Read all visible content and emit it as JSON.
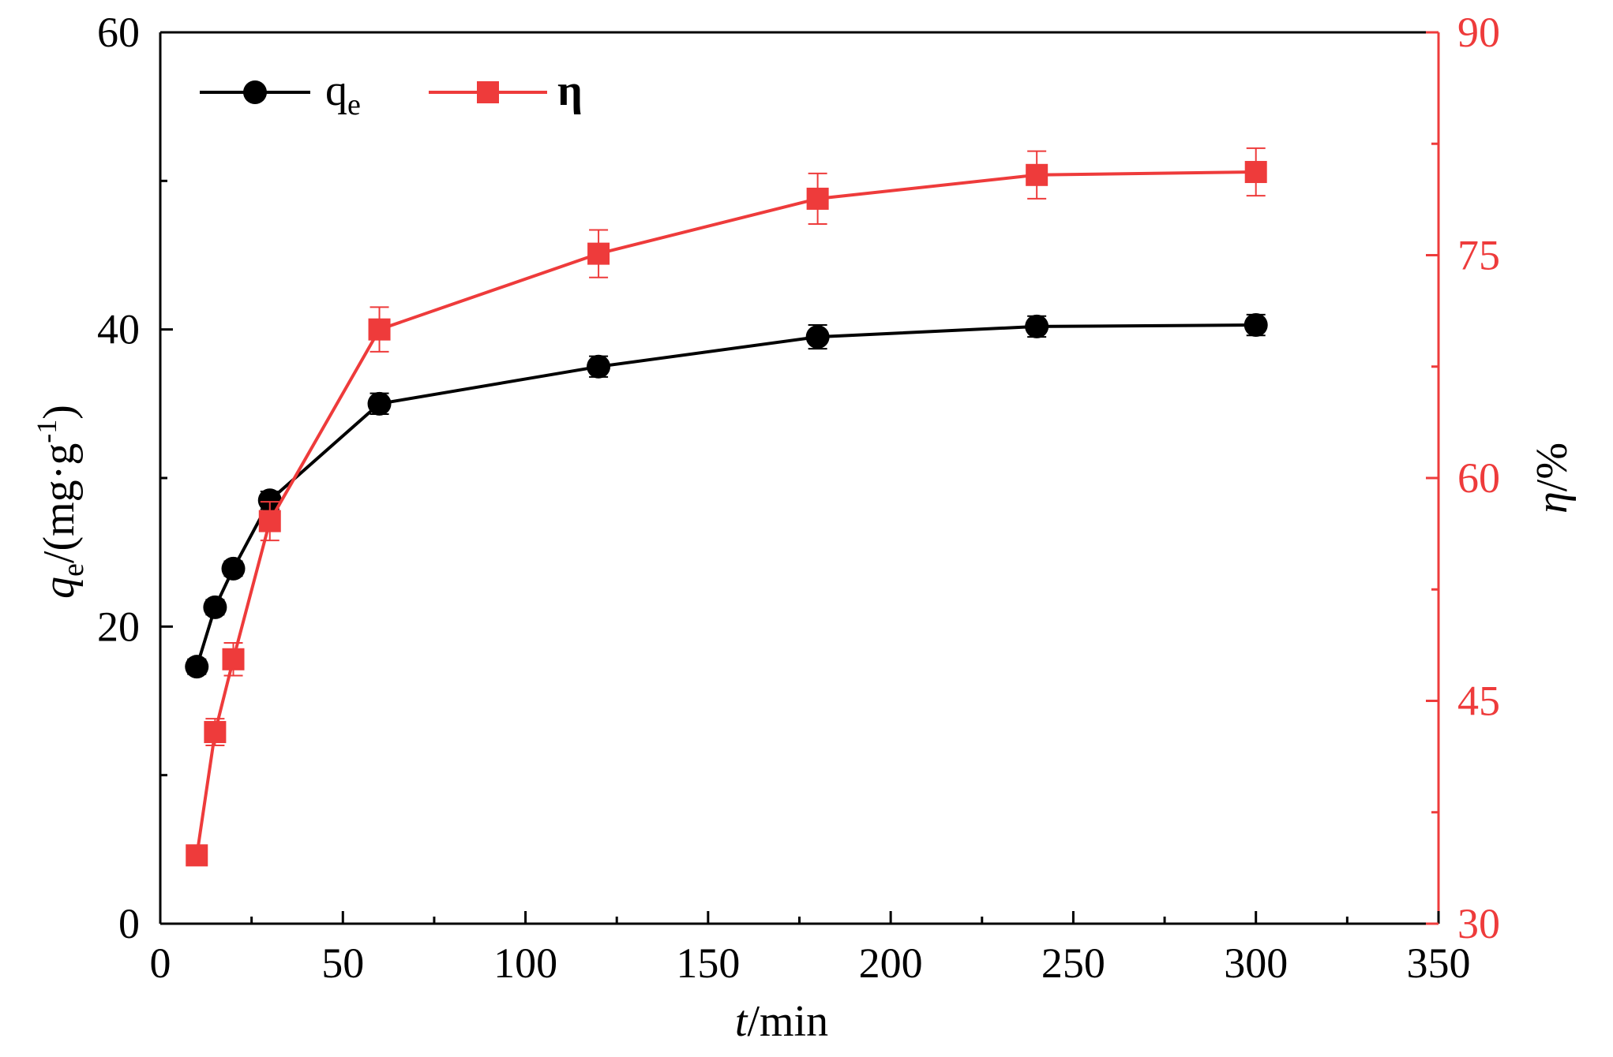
{
  "chart_data": {
    "type": "line",
    "x_axis": {
      "label_var": "t",
      "label_unit": "/min",
      "min": 0,
      "max": 350,
      "ticks": [
        0,
        50,
        100,
        150,
        200,
        250,
        300,
        350
      ],
      "tick_labels": [
        "0",
        "50",
        "100",
        "150",
        "200",
        "250",
        "300",
        "350"
      ],
      "minor_step": 25
    },
    "y_left": {
      "label_var": "q",
      "label_sub": "e",
      "label_unit_pre": "/(mg·g",
      "label_sup": "-1",
      "label_unit_post": ")",
      "min": 0,
      "max": 60,
      "ticks": [
        0,
        20,
        40,
        60
      ],
      "tick_labels": [
        "0",
        "20",
        "40",
        "60"
      ],
      "minor_step": 10,
      "color": "#000000"
    },
    "y_right": {
      "label_var": "η",
      "label_unit": "/%",
      "min": 30,
      "max": 90,
      "ticks": [
        30,
        45,
        60,
        75,
        90
      ],
      "tick_labels": [
        "30",
        "45",
        "60",
        "75",
        "90"
      ],
      "minor_step": 7.5,
      "color": "#ee3b3b"
    },
    "series": [
      {
        "name": "q",
        "name_sub": "e",
        "axis": "left",
        "color": "#000000",
        "marker": "circle",
        "x": [
          10,
          15,
          20,
          30,
          60,
          120,
          180,
          240,
          300
        ],
        "values": [
          17.3,
          21.3,
          23.9,
          28.5,
          35.0,
          37.5,
          39.5,
          40.2,
          40.3
        ],
        "errors": [
          0.5,
          0.5,
          0.5,
          0.6,
          0.7,
          0.7,
          0.8,
          0.7,
          0.7
        ]
      },
      {
        "name": "η",
        "axis": "right",
        "color": "#ee3b3b",
        "marker": "square",
        "x": [
          10,
          15,
          20,
          30,
          60,
          120,
          180,
          240,
          300
        ],
        "values": [
          34.6,
          42.9,
          47.8,
          57.1,
          70.0,
          75.1,
          78.8,
          80.4,
          80.6
        ],
        "errors": [
          0.5,
          0.9,
          1.1,
          1.3,
          1.5,
          1.6,
          1.7,
          1.6,
          1.6
        ]
      }
    ]
  }
}
